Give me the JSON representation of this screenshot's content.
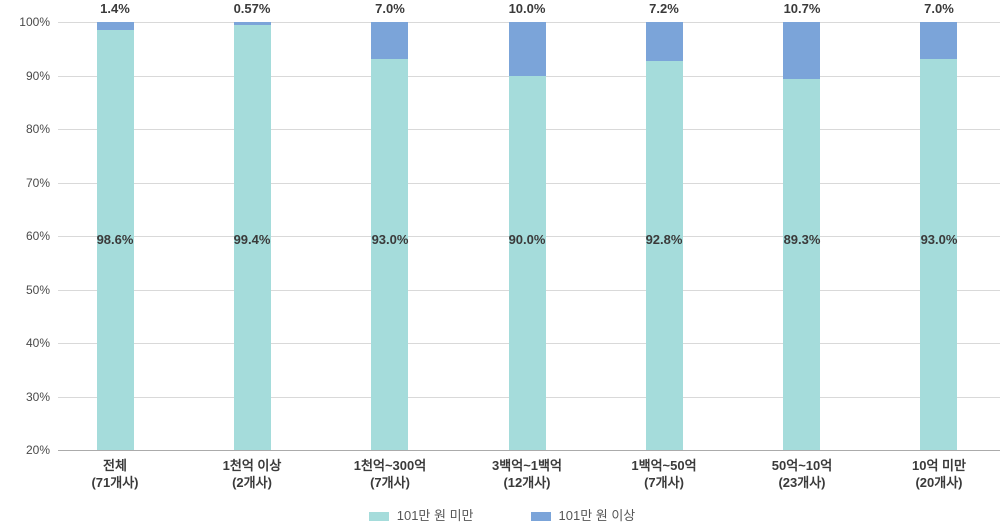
{
  "chart_data": {
    "type": "bar",
    "stacked": true,
    "orientation": "vertical",
    "categories": [
      {
        "name": "전체",
        "count": "(71개사)"
      },
      {
        "name": "1천억 이상",
        "count": "(2개사)"
      },
      {
        "name": "1천억~300억",
        "count": "(7개사)"
      },
      {
        "name": "3백억~1백억",
        "count": "(12개사)"
      },
      {
        "name": "1백억~50억",
        "count": "(7개사)"
      },
      {
        "name": "50억~10억",
        "count": "(23개사)"
      },
      {
        "name": "10억 미만",
        "count": "(20개사)"
      }
    ],
    "series": [
      {
        "name": "101만 원 미만",
        "color": "#a5dcdb",
        "values": [
          98.6,
          99.4,
          93.0,
          90.0,
          92.8,
          89.3,
          93.0
        ],
        "labels": [
          "98.6%",
          "99.4%",
          "93.0%",
          "90.0%",
          "92.8%",
          "89.3%",
          "93.0%"
        ],
        "label_position": "inside"
      },
      {
        "name": "101만 원 이상",
        "color": "#7ba4d9",
        "values": [
          1.4,
          0.57,
          7.0,
          10.0,
          7.2,
          10.7,
          7.0
        ],
        "labels": [
          "1.4%",
          "0.57%",
          "7.0%",
          "10.0%",
          "7.2%",
          "10.7%",
          "7.0%"
        ],
        "label_position": "above"
      }
    ],
    "y_axis": {
      "ticks": [
        "100%",
        "90%",
        "80%",
        "70%",
        "60%",
        "50%",
        "40%",
        "30%",
        "20%"
      ],
      "min": 20,
      "max": 100,
      "grid": true
    },
    "legend_position": "bottom",
    "colors": {
      "gridline": "#d9d9d9",
      "axis_line": "#ababab",
      "data_label_text": "#3a3a3a",
      "tick_text": "#4a4a4a",
      "legend_text": "#565656",
      "background": "#ffffff"
    }
  }
}
